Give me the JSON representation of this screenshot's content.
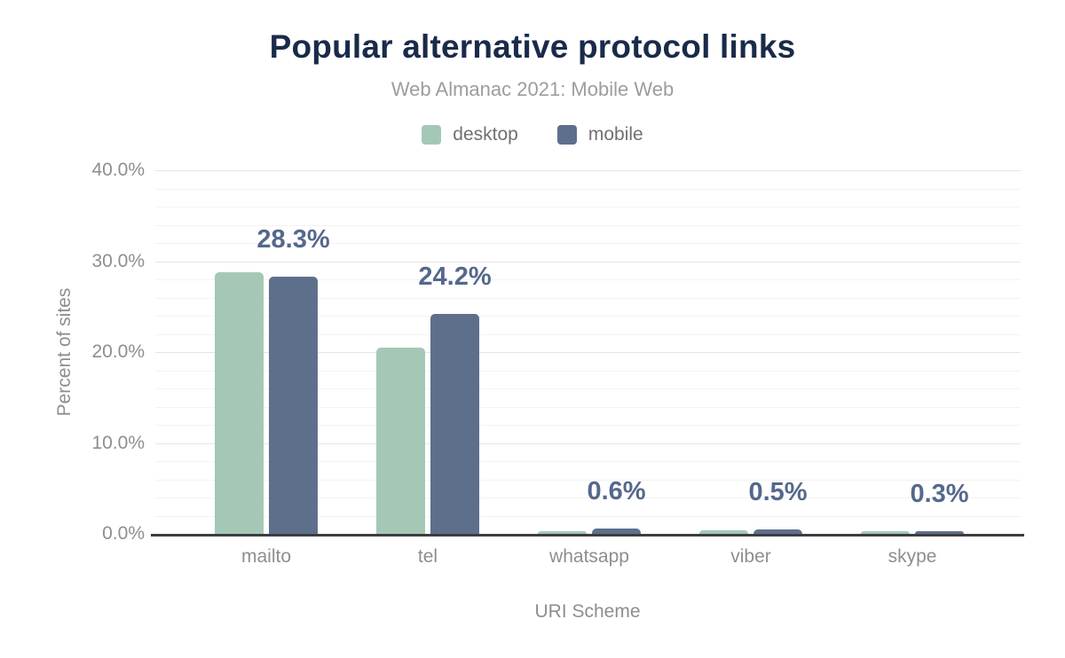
{
  "chart_data": {
    "type": "bar",
    "title": "Popular alternative protocol links",
    "subtitle": "Web Almanac 2021: Mobile Web",
    "xlabel": "URI Scheme",
    "ylabel": "Percent of sites",
    "categories": [
      "mailto",
      "tel",
      "whatsapp",
      "viber",
      "skype"
    ],
    "series": [
      {
        "name": "desktop",
        "color": "#a5c8b6",
        "values": [
          28.8,
          20.5,
          0.3,
          0.4,
          0.3
        ]
      },
      {
        "name": "mobile",
        "color": "#5e6f8c",
        "values": [
          28.3,
          24.2,
          0.6,
          0.5,
          0.3
        ]
      }
    ],
    "data_labels": [
      "28.3%",
      "24.2%",
      "0.6%",
      "0.5%",
      "0.3%"
    ],
    "data_label_color": "#55688c",
    "y_ticks": [
      {
        "label": "40.0%",
        "value": 40
      },
      {
        "label": "30.0%",
        "value": 30
      },
      {
        "label": "20.0%",
        "value": 20
      },
      {
        "label": "10.0%",
        "value": 10
      },
      {
        "label": "0.0%",
        "value": 0
      }
    ],
    "ylim": [
      0,
      40
    ],
    "minor_grid_step": 2,
    "major_grid_step": 10,
    "grid": true,
    "legend_position": "top"
  }
}
